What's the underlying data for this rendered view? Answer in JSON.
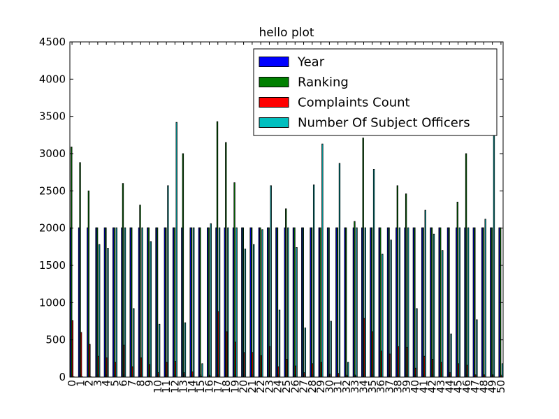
{
  "chart_data": {
    "type": "bar",
    "title": "hello plot",
    "xlabel": "",
    "ylabel": "",
    "ylim": [
      0,
      4500
    ],
    "yticks": [
      0,
      500,
      1000,
      1500,
      2000,
      2500,
      3000,
      3500,
      4000,
      4500
    ],
    "categories": [
      "0",
      "1",
      "2",
      "3",
      "4",
      "5",
      "6",
      "7",
      "8",
      "9",
      "10",
      "11",
      "12",
      "13",
      "14",
      "15",
      "16",
      "17",
      "18",
      "19",
      "20",
      "21",
      "22",
      "23",
      "24",
      "25",
      "26",
      "27",
      "28",
      "29",
      "30",
      "31",
      "32",
      "33",
      "34",
      "35",
      "36",
      "37",
      "38",
      "39",
      "40",
      "41",
      "42",
      "43",
      "44",
      "45",
      "46",
      "47",
      "48",
      "49",
      "50"
    ],
    "legend_position": "upper-right",
    "grid": false,
    "series": [
      {
        "name": "Year",
        "color": "#0000ff",
        "values": [
          2005,
          2005,
          2005,
          2005,
          2005,
          2005,
          2005,
          2005,
          2005,
          2005,
          2005,
          2005,
          2005,
          2005,
          2005,
          2005,
          2005,
          2005,
          2005,
          2005,
          2005,
          2005,
          2005,
          2005,
          2005,
          2005,
          2005,
          2005,
          2005,
          2005,
          2005,
          2005,
          2005,
          2005,
          2005,
          2005,
          2005,
          2005,
          2005,
          2005,
          2005,
          2005,
          2005,
          2005,
          2005,
          2005,
          2005,
          2005,
          2005,
          2005,
          2005
        ]
      },
      {
        "name": "Ranking",
        "color": "#008000",
        "values": [
          3090,
          2880,
          2500,
          2005,
          2005,
          2005,
          2600,
          2005,
          2310,
          2005,
          2005,
          2005,
          2005,
          3000,
          2005,
          2005,
          2005,
          3430,
          3150,
          2610,
          2005,
          2005,
          2005,
          2005,
          2005,
          2260,
          2005,
          2005,
          2005,
          2005,
          2005,
          2005,
          2005,
          2090,
          3210,
          2005,
          2005,
          2005,
          2570,
          2460,
          2005,
          2005,
          2005,
          2005,
          2005,
          2350,
          3000,
          2005,
          2005,
          2005,
          2005
        ]
      },
      {
        "name": "Complaints Count",
        "color": "#ff0000",
        "values": [
          760,
          600,
          440,
          280,
          260,
          200,
          430,
          140,
          260,
          170,
          60,
          200,
          210,
          60,
          70,
          10,
          20,
          880,
          610,
          470,
          330,
          330,
          290,
          410,
          140,
          240,
          150,
          60,
          180,
          200,
          40,
          50,
          20,
          20,
          790,
          610,
          350,
          310,
          410,
          400,
          120,
          280,
          240,
          200,
          60,
          180,
          160,
          30,
          30,
          30,
          20
        ]
      },
      {
        "name": "Number Of Subject Officers",
        "color": "#00bfbf",
        "values": [
          5,
          5,
          5,
          1780,
          1730,
          2005,
          2005,
          920,
          2005,
          1820,
          710,
          2570,
          3420,
          730,
          2005,
          180,
          2060,
          2005,
          2005,
          2005,
          1720,
          1780,
          1980,
          2570,
          900,
          2005,
          1740,
          660,
          2580,
          3130,
          750,
          2870,
          200,
          2005,
          2005,
          2790,
          1650,
          1840,
          2005,
          2005,
          920,
          2240,
          1920,
          1700,
          580,
          2005,
          2005,
          770,
          2120,
          3290,
          180
        ]
      }
    ]
  }
}
